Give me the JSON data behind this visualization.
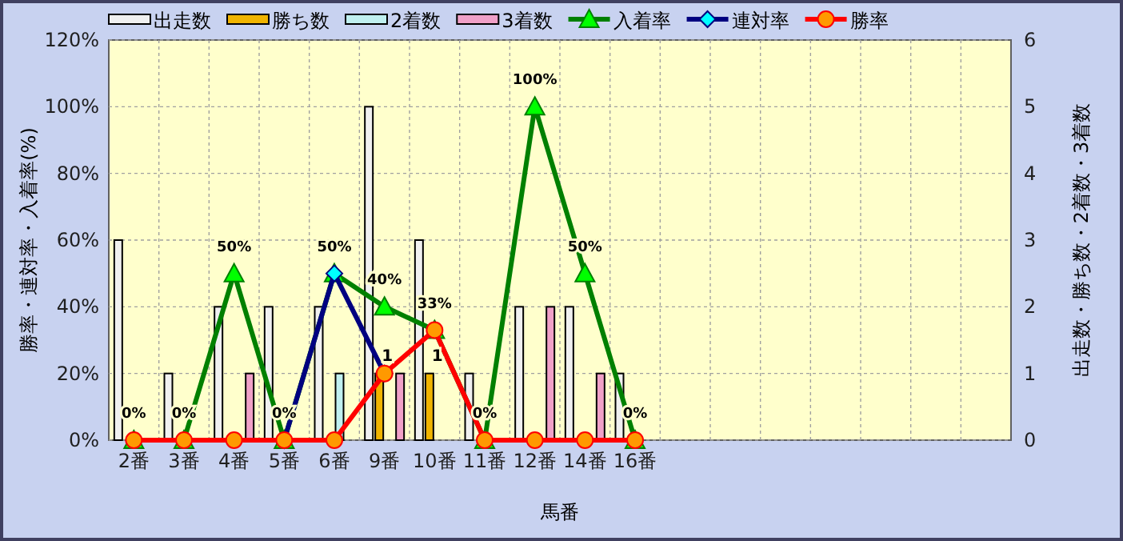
{
  "chart_data": {
    "type": "bar",
    "xlabel": "馬番",
    "ylabel": "勝率・連対率・入着率(%)",
    "y2label": "出走数・勝ち数・2着数・3着数",
    "categories": [
      "2番",
      "3番",
      "4番",
      "5番",
      "6番",
      "9番",
      "10番",
      "11番",
      "12番",
      "14番",
      "16番",
      null,
      null,
      null,
      null,
      null,
      null,
      null
    ],
    "ylim": [
      0,
      120
    ],
    "yticks": [
      {
        "value": 0,
        "label": "0%"
      },
      {
        "value": 20,
        "label": "20%"
      },
      {
        "value": 40,
        "label": "40%"
      },
      {
        "value": 60,
        "label": "60%"
      },
      {
        "value": 80,
        "label": "80%"
      },
      {
        "value": 100,
        "label": "100%"
      },
      {
        "value": 120,
        "label": "120%"
      }
    ],
    "y2lim": [
      0,
      6
    ],
    "y2ticks": [
      0,
      1,
      2,
      3,
      4,
      5,
      6
    ],
    "grid": true,
    "legend": "top",
    "series": [
      {
        "name": "出走数",
        "axis": "y2",
        "color": "#f0f0f0",
        "values": [
          3,
          1,
          2,
          2,
          2,
          5,
          3,
          1,
          2,
          2,
          1,
          null,
          null,
          null,
          null,
          null,
          null,
          null
        ]
      },
      {
        "name": "勝ち数",
        "axis": "y2",
        "color": "#f0b400",
        "values": [
          0,
          0,
          0,
          0,
          0,
          1,
          1,
          0,
          0,
          0,
          0,
          null,
          null,
          null,
          null,
          null,
          null,
          null
        ],
        "value_labels": [
          null,
          null,
          null,
          null,
          null,
          "1",
          "1",
          null,
          null,
          null,
          null,
          null,
          null,
          null,
          null,
          null,
          null,
          null
        ]
      },
      {
        "name": "2着数",
        "axis": "y2",
        "color": "#c0f0f0",
        "values": [
          0,
          0,
          0,
          0,
          1,
          0,
          0,
          0,
          0,
          0,
          0,
          null,
          null,
          null,
          null,
          null,
          null,
          null
        ]
      },
      {
        "name": "3着数",
        "axis": "y2",
        "color": "#f0a0c8",
        "values": [
          0,
          0,
          1,
          0,
          0,
          1,
          0,
          0,
          2,
          1,
          0,
          null,
          null,
          null,
          null,
          null,
          null,
          null
        ]
      },
      {
        "name": "入着率",
        "type": "line",
        "axis": "y",
        "color": "#008000",
        "marker": "triangle",
        "values": [
          0,
          0,
          50,
          0,
          50,
          40,
          33,
          0,
          100,
          50,
          0,
          null,
          null,
          null,
          null,
          null,
          null,
          null
        ],
        "value_labels": [
          "0%",
          "0%",
          "50%",
          "0%",
          "50%",
          "40%",
          "33%",
          "0%",
          "100%",
          "50%",
          "0%",
          null,
          null,
          null,
          null,
          null,
          null,
          null
        ]
      },
      {
        "name": "連対率",
        "type": "line",
        "axis": "y",
        "color": "#000080",
        "marker": "diamond",
        "values": [
          null,
          null,
          null,
          0,
          50,
          20,
          null,
          null,
          null,
          null,
          null,
          null,
          null,
          null,
          null,
          null,
          null,
          null
        ]
      },
      {
        "name": "勝率",
        "type": "line",
        "axis": "y",
        "color": "#ff0000",
        "marker": "circle",
        "values": [
          0,
          0,
          0,
          0,
          0,
          20,
          33,
          0,
          0,
          0,
          0,
          null,
          null,
          null,
          null,
          null,
          null,
          null
        ]
      }
    ]
  }
}
